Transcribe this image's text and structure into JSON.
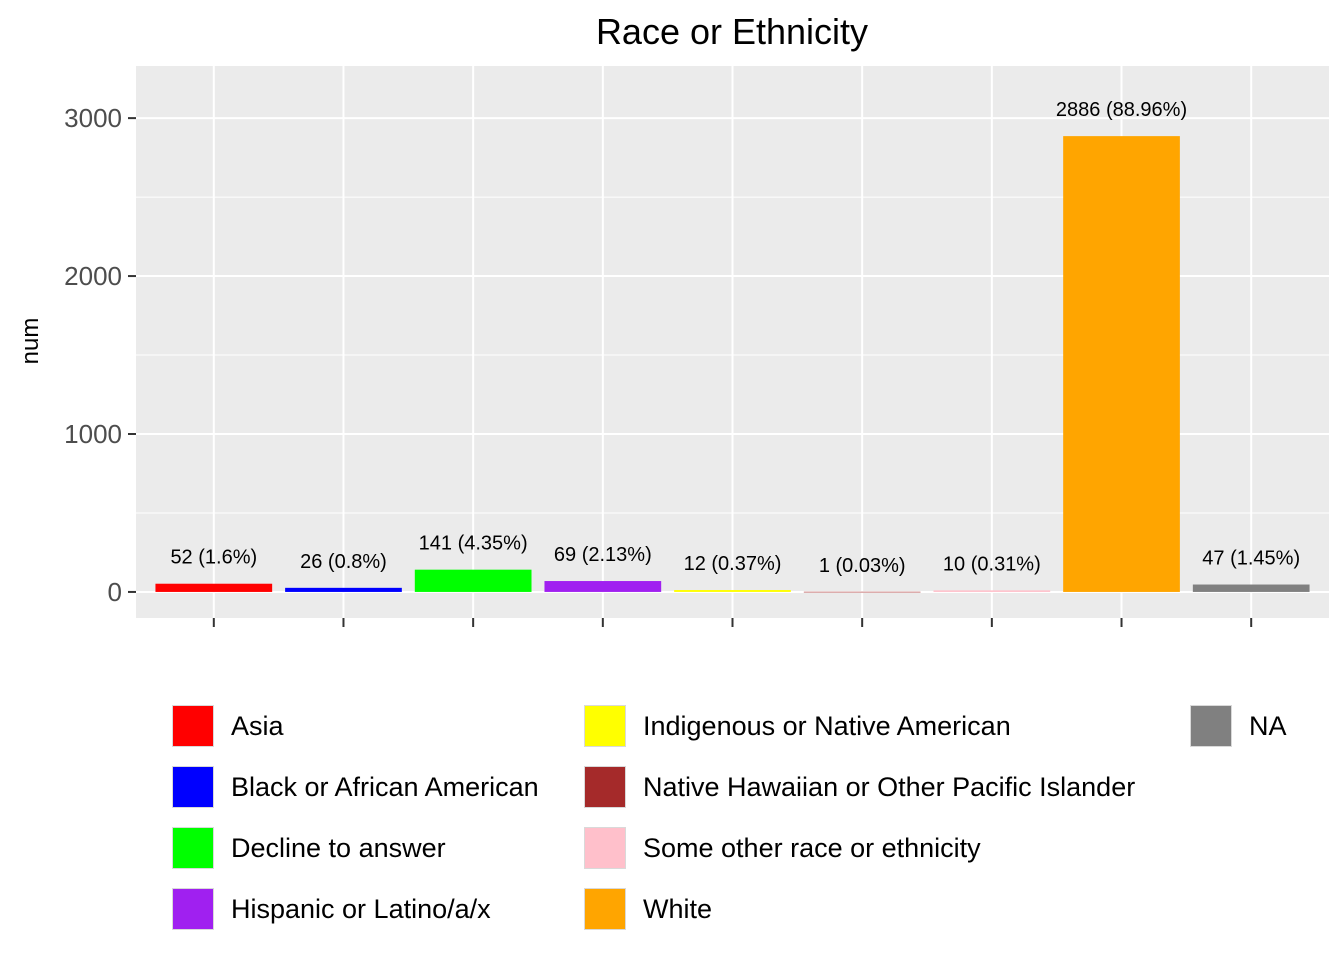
{
  "chart_data": {
    "type": "bar",
    "title": "Race or Ethnicity",
    "xlabel": "",
    "ylabel": "num",
    "ylim": [
      -165,
      3330
    ],
    "yticks": [
      0,
      1000,
      2000,
      3000
    ],
    "categories": [
      "Asia",
      "Black or African American",
      "Decline to answer",
      "Hispanic or Latino/a/x",
      "Indigenous or Native American",
      "Native Hawaiian or Other Pacific Islander",
      "Some other race or ethnicity",
      "White",
      "NA"
    ],
    "values": [
      52,
      26,
      141,
      69,
      12,
      1,
      10,
      2886,
      47
    ],
    "data_labels": [
      "52 (1.6%)",
      "26 (0.8%)",
      "141 (4.35%)",
      "69 (2.13%)",
      "12 (0.37%)",
      "1 (0.03%)",
      "10 (0.31%)",
      "2886 (88.96%)",
      "47 (1.45%)"
    ],
    "colors": [
      "#ff0000",
      "#0000ff",
      "#00ff00",
      "#a020f0",
      "#ffff00",
      "#a52a2a",
      "#ffc0cb",
      "#ffa500",
      "#808080"
    ],
    "grid": true,
    "panel_background": "#ebebeb",
    "legend_position": "bottom",
    "legend": [
      {
        "label": "Asia",
        "color": "#ff0000"
      },
      {
        "label": "Black or African American",
        "color": "#0000ff"
      },
      {
        "label": "Decline to answer",
        "color": "#00ff00"
      },
      {
        "label": "Hispanic or Latino/a/x",
        "color": "#a020f0"
      },
      {
        "label": "Indigenous or Native American",
        "color": "#ffff00"
      },
      {
        "label": "Native Hawaiian or Other Pacific Islander",
        "color": "#a52a2a"
      },
      {
        "label": "Some other race or ethnicity",
        "color": "#ffc0cb"
      },
      {
        "label": "White",
        "color": "#ffa500"
      },
      {
        "label": "NA",
        "color": "#808080"
      }
    ]
  }
}
